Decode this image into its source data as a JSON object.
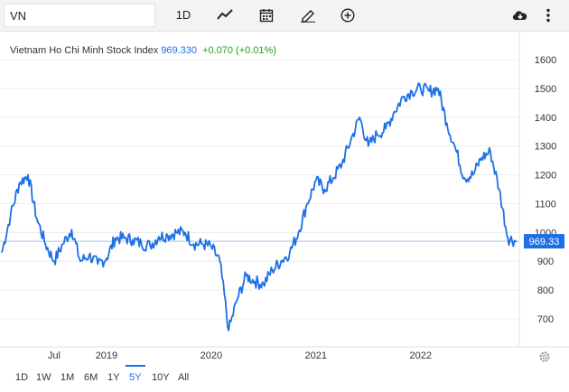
{
  "toolbar": {
    "symbol_value": "VN",
    "interval_label": "1D",
    "icons": [
      "line-chart-icon",
      "calendar-icon",
      "pencil-icon",
      "plus-circle-icon",
      "cloud-download-icon",
      "more-vertical-icon"
    ]
  },
  "header": {
    "name": "Vietnam Ho Chi Minh Stock Index",
    "price": "969.330",
    "change": "+0.070 (+0.01%)",
    "price_color": "#1e6fe6",
    "change_color": "#1aa321"
  },
  "range_buttons": [
    {
      "label": "1D",
      "active": false
    },
    {
      "label": "1W",
      "active": false
    },
    {
      "label": "1M",
      "active": false
    },
    {
      "label": "6M",
      "active": false
    },
    {
      "label": "1Y",
      "active": false
    },
    {
      "label": "5Y",
      "active": true
    },
    {
      "label": "10Y",
      "active": false
    },
    {
      "label": "All",
      "active": false
    }
  ],
  "chart_data": {
    "type": "line",
    "series": [
      {
        "color": "#1e6fe6",
        "points": [
          [
            "2018-01",
            930
          ],
          [
            "2018-02",
            1060
          ],
          [
            "2018-03",
            1170
          ],
          [
            "2018-04",
            1200
          ],
          [
            "2018-05",
            1050
          ],
          [
            "2018-06",
            960
          ],
          [
            "2018-07",
            900
          ],
          [
            "2018-08",
            960
          ],
          [
            "2018-09",
            1010
          ],
          [
            "2018-10",
            900
          ],
          [
            "2018-11",
            920
          ],
          [
            "2018-12",
            890
          ],
          [
            "2019-01",
            910
          ],
          [
            "2019-02",
            980
          ],
          [
            "2019-03",
            980
          ],
          [
            "2019-04",
            975
          ],
          [
            "2019-05",
            960
          ],
          [
            "2019-06",
            955
          ],
          [
            "2019-07",
            985
          ],
          [
            "2019-08",
            990
          ],
          [
            "2019-09",
            1000
          ],
          [
            "2019-10",
            1000
          ],
          [
            "2019-11",
            960
          ],
          [
            "2019-12",
            960
          ],
          [
            "2020-01",
            950
          ],
          [
            "2020-02",
            900
          ],
          [
            "2020-03",
            660
          ],
          [
            "2020-04",
            770
          ],
          [
            "2020-05",
            850
          ],
          [
            "2020-06",
            830
          ],
          [
            "2020-07",
            820
          ],
          [
            "2020-08",
            870
          ],
          [
            "2020-09",
            900
          ],
          [
            "2020-10",
            930
          ],
          [
            "2020-11",
            1000
          ],
          [
            "2020-12",
            1100
          ],
          [
            "2021-01",
            1180
          ],
          [
            "2021-02",
            1150
          ],
          [
            "2021-03",
            1190
          ],
          [
            "2021-04",
            1240
          ],
          [
            "2021-05",
            1320
          ],
          [
            "2021-06",
            1400
          ],
          [
            "2021-07",
            1300
          ],
          [
            "2021-08",
            1340
          ],
          [
            "2021-09",
            1360
          ],
          [
            "2021-10",
            1420
          ],
          [
            "2021-11",
            1470
          ],
          [
            "2021-12",
            1490
          ],
          [
            "2022-01",
            1500
          ],
          [
            "2022-02",
            1490
          ],
          [
            "2022-03",
            1500
          ],
          [
            "2022-04",
            1380
          ],
          [
            "2022-05",
            1290
          ],
          [
            "2022-06",
            1190
          ],
          [
            "2022-07",
            1200
          ],
          [
            "2022-08",
            1260
          ],
          [
            "2022-09",
            1280
          ],
          [
            "2022-10",
            1150
          ],
          [
            "2022-11",
            980
          ],
          [
            "2022-12",
            969.33
          ]
        ]
      }
    ],
    "x_tick_labels": [
      {
        "date": "2018-07",
        "label": "Jul"
      },
      {
        "date": "2019-01",
        "label": "2019"
      },
      {
        "date": "2020-01",
        "label": "2020"
      },
      {
        "date": "2021-01",
        "label": "2021"
      },
      {
        "date": "2022-01",
        "label": "2022"
      }
    ],
    "y_ticks": [
      700,
      800,
      900,
      1000,
      1100,
      1200,
      1300,
      1400,
      1500,
      1600
    ],
    "ylim": [
      620,
      1650
    ],
    "current_value": 969.33,
    "current_value_label": "969.33",
    "grid": "horizontal",
    "axis_side": "right"
  }
}
